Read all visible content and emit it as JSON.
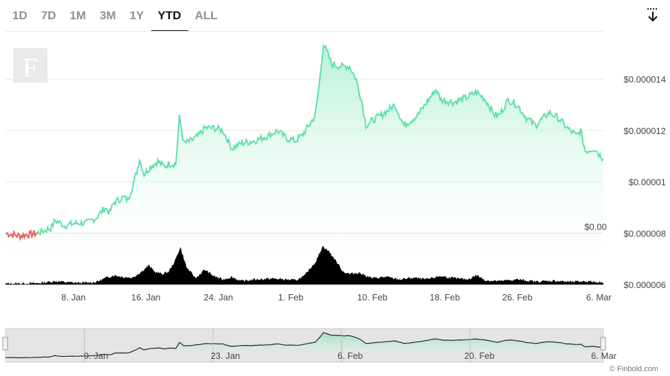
{
  "toolbar": {
    "tabs": [
      "1D",
      "7D",
      "1M",
      "3M",
      "1Y",
      "YTD",
      "ALL"
    ],
    "active_tab": "YTD",
    "download_icon": "download-icon"
  },
  "watermark": "F",
  "credit": "© Finbold.com",
  "colors": {
    "line_up": "#5fe0a9",
    "line_down": "#f25c54",
    "fill_top": "#c9f5e1",
    "volume": "#000000",
    "grid": "#e6e6e6"
  },
  "chart_data": {
    "type": "line",
    "y_ticks": [
      "$0.000006",
      "$0.000008",
      "$0.00001",
      "$0.000012",
      "$0.000014"
    ],
    "y_tick_values": [
      6e-06,
      8e-06,
      1e-05,
      1.2e-05,
      1.4e-05
    ],
    "ylim": [
      6e-06,
      1.58e-05
    ],
    "x_ticks": [
      "8. Jan",
      "16. Jan",
      "24. Jan",
      "1. Feb",
      "10. Feb",
      "18. Feb",
      "26. Feb",
      "6. Mar"
    ],
    "x_tick_days": [
      8,
      16,
      24,
      32,
      41,
      49,
      57,
      66
    ],
    "xlim_days": [
      0.5,
      66.5
    ],
    "current_price_label": "$0.00",
    "series": [
      {
        "price_points": [
          [
            0.5,
            8e-06
          ],
          [
            2,
            7.9e-06
          ],
          [
            4,
            8e-06
          ],
          [
            5.5,
            8.2e-06
          ],
          [
            6,
            8.5e-06
          ],
          [
            7,
            8.3e-06
          ],
          [
            8.5,
            8.4e-06
          ],
          [
            9.5,
            8.4e-06
          ],
          [
            10.5,
            8.6e-06
          ],
          [
            11,
            8.8e-06
          ],
          [
            11.5,
            9e-06
          ],
          [
            12,
            8.8e-06
          ],
          [
            12.5,
            9.2e-06
          ],
          [
            13.5,
            9.4e-06
          ],
          [
            14,
            9.3e-06
          ],
          [
            14.5,
            9.8e-06
          ],
          [
            15,
            1.04e-05
          ],
          [
            15.3,
            1.09e-05
          ],
          [
            15.8,
            1.03e-05
          ],
          [
            16.5,
            1.06e-05
          ],
          [
            17.3,
            1.08e-05
          ],
          [
            18,
            1.06e-05
          ],
          [
            18.5,
            1.07e-05
          ],
          [
            19.3,
            1.07e-05
          ],
          [
            19.7,
            1.25e-05
          ],
          [
            20.2,
            1.15e-05
          ],
          [
            21,
            1.16e-05
          ],
          [
            21.8,
            1.18e-05
          ],
          [
            22.5,
            1.21e-05
          ],
          [
            23.5,
            1.21e-05
          ],
          [
            24.5,
            1.2e-05
          ],
          [
            25.5,
            1.13e-05
          ],
          [
            26.5,
            1.15e-05
          ],
          [
            28,
            1.16e-05
          ],
          [
            29.5,
            1.18e-05
          ],
          [
            30.5,
            1.2e-05
          ],
          [
            31.5,
            1.17e-05
          ],
          [
            32.5,
            1.16e-05
          ],
          [
            33.2,
            1.18e-05
          ],
          [
            34,
            1.22e-05
          ],
          [
            34.7,
            1.26e-05
          ],
          [
            35.2,
            1.4e-05
          ],
          [
            35.6,
            1.54e-05
          ],
          [
            36.5,
            1.46e-05
          ],
          [
            37.5,
            1.45e-05
          ],
          [
            38.5,
            1.45e-05
          ],
          [
            39.2,
            1.4e-05
          ],
          [
            39.8,
            1.32e-05
          ],
          [
            40.3,
            1.22e-05
          ],
          [
            41,
            1.24e-05
          ],
          [
            42,
            1.26e-05
          ],
          [
            43.5,
            1.3e-05
          ],
          [
            44.5,
            1.22e-05
          ],
          [
            46,
            1.26e-05
          ],
          [
            47.2,
            1.32e-05
          ],
          [
            48,
            1.36e-05
          ],
          [
            48.6,
            1.32e-05
          ],
          [
            50,
            1.31e-05
          ],
          [
            51.5,
            1.33e-05
          ],
          [
            52.5,
            1.35e-05
          ],
          [
            53.5,
            1.32e-05
          ],
          [
            54.5,
            1.26e-05
          ],
          [
            55,
            1.26e-05
          ],
          [
            56,
            1.32e-05
          ],
          [
            57,
            1.3e-05
          ],
          [
            58,
            1.25e-05
          ],
          [
            59,
            1.22e-05
          ],
          [
            60.5,
            1.27e-05
          ],
          [
            61.5,
            1.25e-05
          ],
          [
            62.5,
            1.21e-05
          ],
          [
            63.5,
            1.18e-05
          ],
          [
            64,
            1.2e-05
          ],
          [
            64.5,
            1.12e-05
          ],
          [
            65.5,
            1.13e-05
          ],
          [
            66.5,
            1.09e-05
          ]
        ],
        "volume_points": [
          [
            0.5,
            0.02
          ],
          [
            4,
            0.03
          ],
          [
            6,
            0.08
          ],
          [
            7.5,
            0.05
          ],
          [
            9,
            0.04
          ],
          [
            10.5,
            0.06
          ],
          [
            11.5,
            0.15
          ],
          [
            12.5,
            0.22
          ],
          [
            13.5,
            0.18
          ],
          [
            14.5,
            0.16
          ],
          [
            15.5,
            0.3
          ],
          [
            16.3,
            0.45
          ],
          [
            17,
            0.3
          ],
          [
            17.8,
            0.25
          ],
          [
            18.5,
            0.3
          ],
          [
            19.2,
            0.55
          ],
          [
            19.8,
            0.88
          ],
          [
            20.5,
            0.4
          ],
          [
            21.5,
            0.15
          ],
          [
            22.5,
            0.35
          ],
          [
            23.5,
            0.2
          ],
          [
            24.5,
            0.12
          ],
          [
            25.5,
            0.18
          ],
          [
            26.5,
            0.08
          ],
          [
            28,
            0.12
          ],
          [
            30,
            0.14
          ],
          [
            31.5,
            0.12
          ],
          [
            32.5,
            0.1
          ],
          [
            33.5,
            0.2
          ],
          [
            34.2,
            0.4
          ],
          [
            34.8,
            0.55
          ],
          [
            35.5,
            0.9
          ],
          [
            36.2,
            0.78
          ],
          [
            37,
            0.55
          ],
          [
            37.8,
            0.3
          ],
          [
            38.5,
            0.25
          ],
          [
            39.5,
            0.28
          ],
          [
            41,
            0.15
          ],
          [
            42.5,
            0.18
          ],
          [
            44,
            0.12
          ],
          [
            45.5,
            0.16
          ],
          [
            47,
            0.12
          ],
          [
            48.5,
            0.2
          ],
          [
            50,
            0.15
          ],
          [
            51.5,
            0.12
          ],
          [
            52.5,
            0.22
          ],
          [
            53.5,
            0.1
          ],
          [
            55,
            0.08
          ],
          [
            57,
            0.12
          ],
          [
            59,
            0.07
          ],
          [
            61,
            0.09
          ],
          [
            63,
            0.06
          ],
          [
            64.5,
            0.08
          ],
          [
            66.5,
            0.05
          ]
        ]
      }
    ],
    "navigator": {
      "x_ticks": [
        "9. Jan",
        "23. Jan",
        "6. Feb",
        "20. Feb",
        "6. Mar"
      ],
      "x_tick_days": [
        9,
        23,
        37,
        51,
        65
      ]
    }
  }
}
